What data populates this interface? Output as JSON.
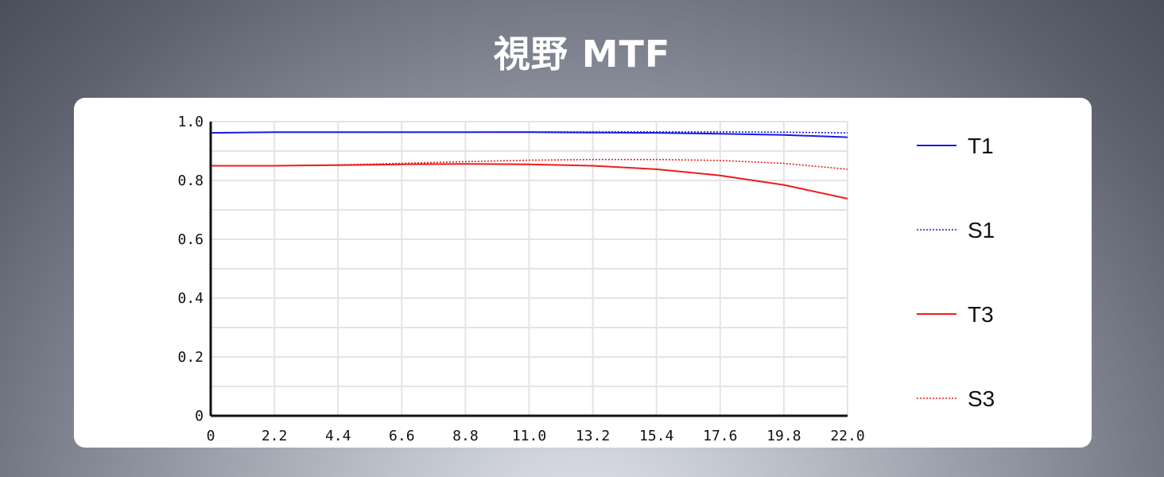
{
  "page": {
    "title": "視野 MTF"
  },
  "chart_data": {
    "type": "line",
    "title": "",
    "xlabel": "",
    "ylabel": "",
    "xlim": [
      0,
      22.0
    ],
    "ylim": [
      0,
      1.0
    ],
    "grid": true,
    "legend_position": "right",
    "x_ticks": [
      "0",
      "2.2",
      "4.4",
      "6.6",
      "8.8",
      "11.0",
      "13.2",
      "15.4",
      "17.6",
      "19.8",
      "22.0"
    ],
    "x_tick_values": [
      0,
      2.2,
      4.4,
      6.6,
      8.8,
      11.0,
      13.2,
      15.4,
      17.6,
      19.8,
      22.0
    ],
    "y_ticks": [
      "0",
      "0.2",
      "0.4",
      "0.6",
      "0.8",
      "1.0"
    ],
    "y_tick_values": [
      0,
      0.2,
      0.4,
      0.6,
      0.8,
      1.0
    ],
    "x": [
      0,
      2.2,
      4.4,
      6.6,
      8.8,
      11.0,
      13.2,
      15.4,
      17.6,
      19.8,
      22.0
    ],
    "series": [
      {
        "name": "T1",
        "color": "#1a1ae6",
        "dash": "solid",
        "values": [
          0.962,
          0.964,
          0.964,
          0.964,
          0.964,
          0.964,
          0.963,
          0.962,
          0.959,
          0.955,
          0.947
        ]
      },
      {
        "name": "S1",
        "color": "#1a1ae6",
        "dash": "dotted",
        "values": [
          0.962,
          0.964,
          0.964,
          0.964,
          0.964,
          0.965,
          0.965,
          0.965,
          0.965,
          0.964,
          0.962
        ]
      },
      {
        "name": "T3",
        "color": "#ee1c1c",
        "dash": "solid",
        "values": [
          0.85,
          0.85,
          0.852,
          0.855,
          0.856,
          0.855,
          0.85,
          0.838,
          0.817,
          0.785,
          0.738
        ]
      },
      {
        "name": "S3",
        "color": "#ee1c1c",
        "dash": "dotted",
        "values": [
          0.85,
          0.85,
          0.853,
          0.858,
          0.864,
          0.869,
          0.871,
          0.871,
          0.868,
          0.858,
          0.838
        ]
      }
    ]
  }
}
